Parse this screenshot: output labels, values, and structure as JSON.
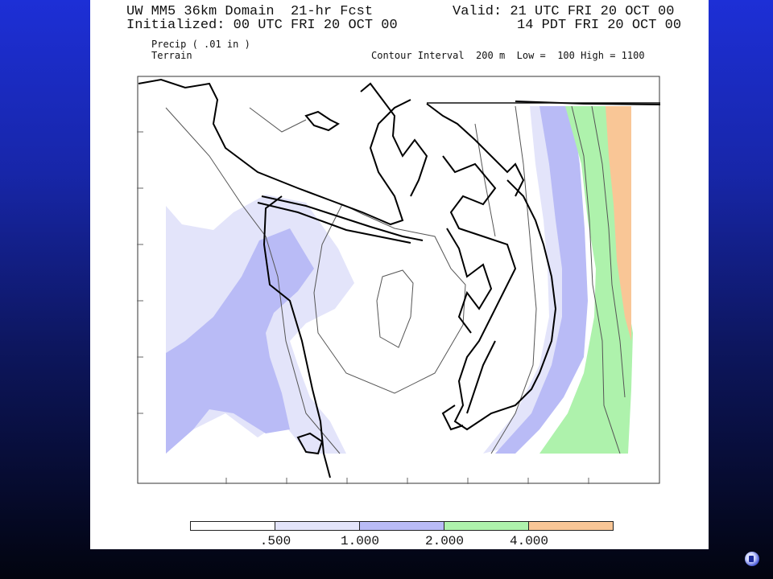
{
  "header": {
    "title_line1": "UW MM5 36km Domain  21-hr Fcst",
    "title_line2": "Initialized: 00 UTC FRI 20 OCT 00",
    "valid_line1": "Valid: 21 UTC FRI 20 OCT 00",
    "valid_line2": "14 PDT FRI 20 OCT 00",
    "field1": "Precip ( .01 in )",
    "field2": "Terrain",
    "contour_info": "Contour Interval  200 m  Low =  100 High = 1100"
  },
  "legend": {
    "bins": [
      {
        "color": "#ffffff"
      },
      {
        "color": "#e3e4fa"
      },
      {
        "color": "#b9bbf6"
      },
      {
        "color": "#aef2ac"
      },
      {
        "color": "#f9c696"
      }
    ],
    "labels": [
      ".500",
      "1.000",
      "2.000",
      "4.000"
    ]
  },
  "colors": {
    "precip_lt_0_5": "#ffffff",
    "precip_0_5_1": "#e3e4fa",
    "precip_1_2": "#b9bbf6",
    "precip_2_4": "#aef2ac",
    "precip_gt_4": "#f9c696"
  },
  "icons": {
    "audio": "speaker-icon"
  }
}
